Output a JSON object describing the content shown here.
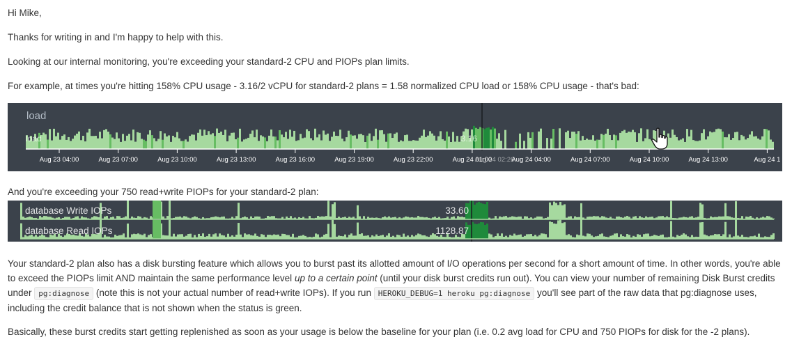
{
  "email": {
    "greeting": "Hi Mike,",
    "thanks": "Thanks for writing in and I'm happy to help with this.",
    "monitoring": "Looking at our internal monitoring, you're exceeding your standard-2 CPU and PIOPs plan limits.",
    "example": "For example, at times you're hitting 158% CPU usage - 3.16/2 vCPU for standard-2 plans = 1.58 normalized CPU load or 158% CPU usage - that's bad:",
    "piops_intro": "And you're exceeding your 750 read+write PIOPs for your standard-2 plan:",
    "bursting": {
      "part1": "Your standard-2 plan also has a disk bursting feature which allows you to burst past its allotted amount of I/O operations per second for a short amount of time. In other words, you're able to exceed the PIOPs limit AND maintain the same performance level ",
      "emphasis": "up to a certain point",
      "part2": " (until your disk burst credits run out). You can view your number of remaining Disk Burst credits under ",
      "code1": "pg:diagnose",
      "part3": " (note this is not your actual number of read+write IOPs). If you run ",
      "code2": "HEROKU_DEBUG=1 heroku pg:diagnose",
      "part4": " you'll see part of the raw data that pg:diagnose uses, including the credit balance that is not shown when the status is green."
    },
    "replenish": "Basically, these burst credits start getting replenished as soon as your usage is below the baseline for your plan (i.e. 0.2 avg load for CPU and 750 PIOPs for disk for the -2 plans)."
  },
  "load_chart": {
    "title": "load",
    "series_label": "load",
    "hover_value": "3.16",
    "hover_time": "Aug 24 02:26",
    "ticks": [
      "Aug 23 04:00",
      "Aug 23 07:00",
      "Aug 23 10:00",
      "Aug 23 13:00",
      "Aug 23 16:00",
      "Aug 23 19:00",
      "Aug 23 22:00",
      "Aug 24 01:00",
      "Aug 24 04:00",
      "Aug 24 07:00",
      "Aug 24 10:00",
      "Aug 24 13:00",
      "Aug 24 1"
    ]
  },
  "iops_chart": {
    "write_label": "database Write IOPs",
    "write_value": "33.60",
    "read_label": "database Read IOPs",
    "read_value": "1128.87"
  },
  "colors": {
    "panel_bg": "#3b424b",
    "bar_light": "#a6d99f",
    "bar_mid": "#67bd63",
    "bar_dark": "#1f8a3b",
    "hover_line": "#1a1d21",
    "grid_text": "#ffffff"
  },
  "icons": {
    "cursor": "hand-pointer-icon"
  }
}
